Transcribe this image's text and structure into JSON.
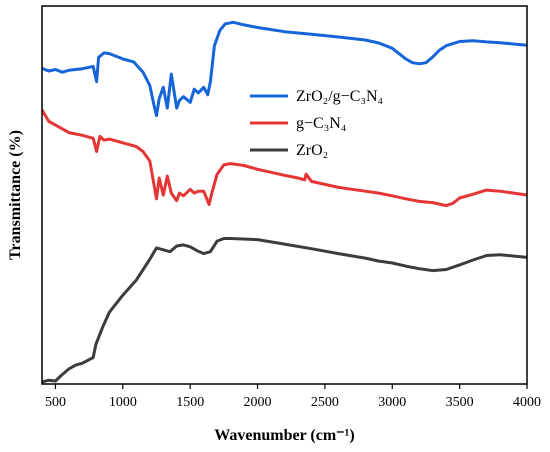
{
  "chart_data": {
    "type": "line",
    "title": "",
    "xlabel": "Wavenumber (cm⁻¹)",
    "ylabel": "Transmittance (%)",
    "xlim": [
      400,
      4000
    ],
    "ylim": [
      0,
      100
    ],
    "x_ticks": [
      "500",
      "1000",
      "1500",
      "2000",
      "2500",
      "3000",
      "3500",
      "4000"
    ],
    "grid": false,
    "legend_position": "top-right",
    "series": [
      {
        "name": "ZrO₂/g−C₃N₄",
        "color": "#1565d8",
        "x": [
          400,
          450,
          500,
          550,
          600,
          700,
          780,
          805,
          820,
          860,
          900,
          1000,
          1080,
          1150,
          1200,
          1230,
          1250,
          1270,
          1300,
          1330,
          1360,
          1400,
          1420,
          1450,
          1500,
          1530,
          1560,
          1600,
          1630,
          1650,
          1680,
          1720,
          1760,
          1820,
          1900,
          2000,
          2200,
          2400,
          2600,
          2800,
          2900,
          3000,
          3100,
          3150,
          3200,
          3250,
          3300,
          3350,
          3400,
          3500,
          3600,
          3700,
          3800,
          4000
        ],
        "y": [
          83.5,
          82.8,
          83.2,
          82.5,
          83.0,
          83.4,
          84.0,
          80.0,
          86.4,
          87.6,
          87.4,
          86.0,
          85.2,
          82.5,
          79.0,
          74.0,
          71.0,
          75.5,
          78.5,
          73.0,
          82.0,
          73.0,
          75.0,
          76.0,
          74.5,
          78.0,
          77.0,
          78.5,
          76.5,
          80.0,
          89.5,
          93.5,
          95.3,
          95.7,
          95.0,
          94.3,
          93.2,
          92.5,
          91.8,
          91.0,
          90.2,
          88.8,
          86.0,
          85.0,
          84.7,
          85.0,
          86.5,
          88.3,
          89.5,
          90.6,
          90.8,
          90.5,
          90.3,
          89.6
        ]
      },
      {
        "name": "g−C₃N₄",
        "color": "#e53535",
        "x": [
          400,
          450,
          500,
          550,
          600,
          700,
          780,
          805,
          830,
          860,
          900,
          1000,
          1100,
          1150,
          1200,
          1250,
          1270,
          1300,
          1330,
          1360,
          1400,
          1420,
          1450,
          1500,
          1530,
          1560,
          1600,
          1640,
          1660,
          1700,
          1750,
          1800,
          1900,
          2000,
          2100,
          2200,
          2300,
          2350,
          2360,
          2400,
          2500,
          2600,
          2700,
          2800,
          2900,
          3000,
          3100,
          3200,
          3300,
          3400,
          3450,
          3500,
          3600,
          3700,
          3800,
          4000
        ],
        "y": [
          72.5,
          69.5,
          68.5,
          67.5,
          66.5,
          65.8,
          65.0,
          61.5,
          65.5,
          64.5,
          64.8,
          63.8,
          62.8,
          61.5,
          59.0,
          49.0,
          54.5,
          50.0,
          55.0,
          50.5,
          48.5,
          50.5,
          49.8,
          51.5,
          50.5,
          51.0,
          51.0,
          47.5,
          50.5,
          55.5,
          58.0,
          58.3,
          57.8,
          56.8,
          56.0,
          55.2,
          54.5,
          54.0,
          55.5,
          53.6,
          52.8,
          52.0,
          51.5,
          51.0,
          50.5,
          49.8,
          49.0,
          48.3,
          48.0,
          47.2,
          47.8,
          49.2,
          50.2,
          51.3,
          51.0,
          50.0
        ]
      },
      {
        "name": "ZrO₂",
        "color": "#3c3c3c",
        "x": [
          400,
          450,
          500,
          550,
          600,
          650,
          700,
          780,
          800,
          850,
          900,
          1000,
          1100,
          1200,
          1250,
          1300,
          1350,
          1400,
          1450,
          1500,
          1550,
          1600,
          1650,
          1700,
          1750,
          1800,
          2000,
          2200,
          2400,
          2600,
          2800,
          2900,
          3000,
          3100,
          3200,
          3300,
          3400,
          3500,
          3600,
          3700,
          3800,
          4000
        ],
        "y": [
          0.5,
          1.0,
          0.8,
          2.5,
          4.0,
          5.0,
          5.5,
          7.0,
          10.5,
          15.0,
          19.0,
          23.5,
          27.5,
          33.0,
          36.0,
          35.5,
          35.0,
          36.5,
          36.8,
          36.3,
          35.3,
          34.5,
          35.0,
          37.8,
          38.5,
          38.5,
          38.2,
          37.0,
          35.8,
          34.5,
          33.3,
          32.5,
          32.0,
          31.2,
          30.5,
          30.0,
          30.3,
          31.5,
          32.8,
          34.0,
          34.2,
          33.5
        ]
      }
    ]
  }
}
